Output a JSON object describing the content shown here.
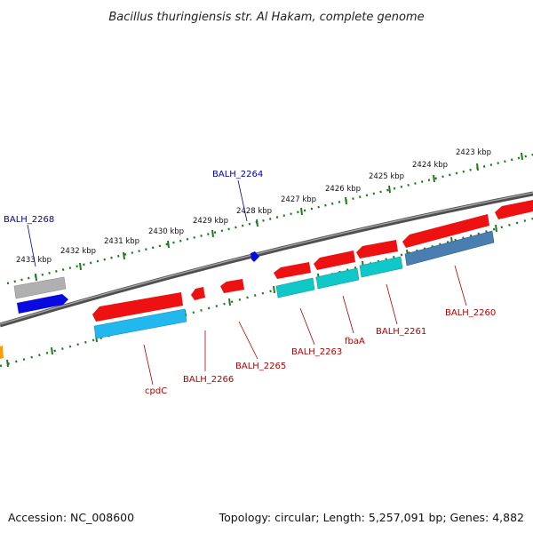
{
  "title": "Bacillus thuringiensis str. Al Hakam, complete genome",
  "scale_labels": [
    "2423 kbp",
    "2424 kbp",
    "2425 kbp",
    "2426 kbp",
    "2427 kbp",
    "2428 kbp",
    "2429 kbp",
    "2430 kbp",
    "2431 kbp",
    "2432 kbp",
    "2433 kbp"
  ],
  "gene_labels": {
    "balh_2264": "BALH_2264",
    "balh_2268": "BALH_2268",
    "balh_2260": "BALH_2260",
    "balh_2261": "BALH_2261",
    "fbaa": "fbaA",
    "balh_2263": "BALH_2263",
    "balh_2265": "BALH_2265",
    "balh_2266": "BALH_2266",
    "cpdc": "cpdC"
  },
  "colors": {
    "backbone": "#7a7a7a",
    "tick_green": "#1f7a1f",
    "forward_label": "#0000aa",
    "reverse_label": "#b00000",
    "gene_red": "#ee1111",
    "gene_blue": "#0a0ae0",
    "gene_grey": "#b0b0b0",
    "cds_cyan": "#11c8c8",
    "cds_sky": "#22b8ee",
    "cds_steel": "#4a7db0",
    "orange": "#f5a000"
  },
  "footer": {
    "accession": "Accession: NC_008600",
    "info": "Topology: circular; Length: 5,257,091 bp; Genes: 4,882"
  }
}
